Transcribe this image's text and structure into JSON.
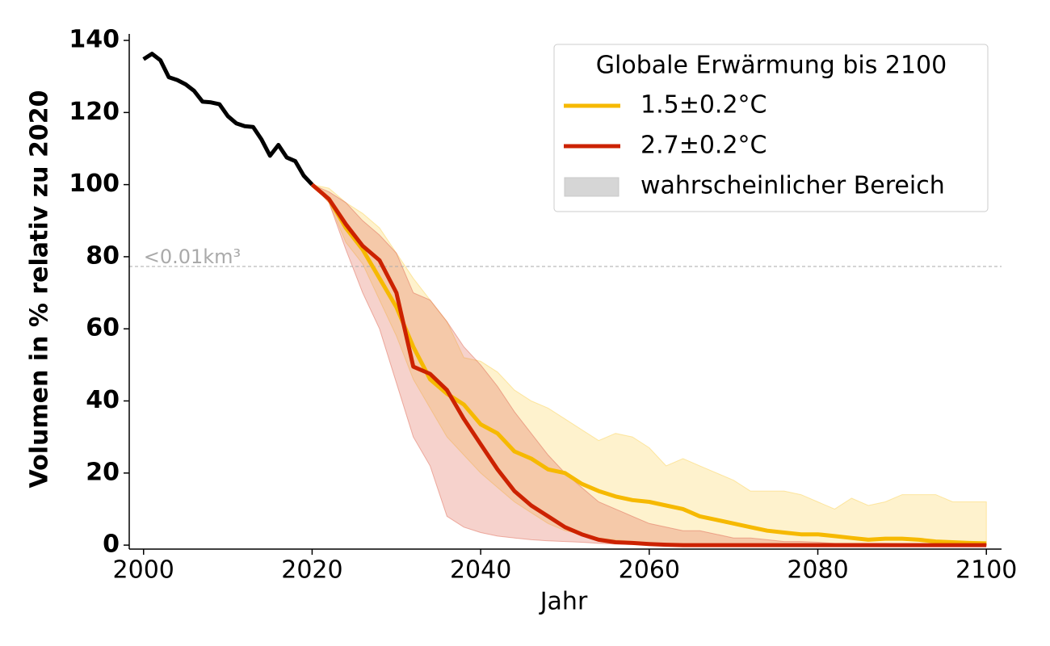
{
  "chart_data": {
    "type": "line",
    "xlabel": "Jahr",
    "ylabel": "Volumen in % relativ zu 2020",
    "xlim": [
      1998.3,
      2101.8
    ],
    "ylim": [
      -1.1,
      141.8
    ],
    "xticks": [
      2000,
      2020,
      2040,
      2060,
      2080,
      2100
    ],
    "yticks": [
      0,
      20,
      40,
      60,
      80,
      100,
      120,
      140
    ],
    "legend": {
      "title": "Globale Erwärmung bis 2100",
      "position": "upper right",
      "band_label": "wahrscheinlicher Bereich",
      "band_color": "#d6d6d6"
    },
    "reference": {
      "value": 77.3,
      "label": "<0.01km³",
      "color": "#aaaaaa"
    },
    "series": [
      {
        "color": "#000000",
        "x": [
          2000,
          2001,
          2002,
          2003,
          2004,
          2005,
          2006,
          2007,
          2008,
          2009,
          2010,
          2011,
          2012,
          2013,
          2014,
          2015,
          2016,
          2017,
          2018,
          2019,
          2020
        ],
        "values": [
          134.8,
          136.3,
          134.5,
          129.8,
          129,
          127.8,
          126,
          123,
          122.8,
          122.3,
          119,
          117,
          116.2,
          116,
          112.5,
          108,
          111,
          107.5,
          106.5,
          102.5,
          100
        ]
      },
      {
        "name": "1.5±0.2°C",
        "color": "#f6b900",
        "x": [
          2020,
          2022,
          2024,
          2026,
          2028,
          2030,
          2032,
          2034,
          2036,
          2038,
          2040,
          2042,
          2044,
          2046,
          2048,
          2050,
          2052,
          2054,
          2056,
          2058,
          2060,
          2062,
          2064,
          2066,
          2068,
          2070,
          2072,
          2074,
          2076,
          2078,
          2080,
          2082,
          2084,
          2086,
          2088,
          2090,
          2092,
          2094,
          2096,
          2098,
          2100
        ],
        "values": [
          100,
          96,
          88,
          82,
          74,
          66,
          55,
          46,
          42,
          39,
          33.5,
          31,
          26,
          24,
          21,
          20,
          17,
          15,
          13.5,
          12.5,
          12,
          11,
          10,
          8,
          7,
          6,
          5,
          4,
          3.5,
          3,
          3,
          2.5,
          2,
          1.5,
          1.8,
          1.8,
          1.5,
          1,
          0.8,
          0.6,
          0.5
        ],
        "band_color": "#fcd35a",
        "lower": [
          100,
          95,
          84,
          78,
          68,
          58,
          46,
          38,
          30,
          25,
          20,
          16,
          12,
          9,
          6,
          4,
          3,
          2,
          1.5,
          1,
          0.5,
          0.3,
          0.3,
          0.3,
          0.3,
          0.2,
          0.2,
          0.2,
          0.2,
          0.1,
          0.1,
          0.1,
          0.1,
          0.1,
          0,
          0,
          0,
          0,
          0,
          0,
          0
        ],
        "upper": [
          100,
          99,
          95,
          92,
          88,
          81,
          74,
          68,
          62,
          52,
          51,
          48,
          43,
          40,
          38,
          35,
          32,
          29,
          31,
          30,
          27,
          22,
          24,
          22,
          20,
          18,
          15,
          15,
          15,
          14,
          12,
          10,
          13,
          11,
          12,
          14,
          14,
          14,
          12,
          12,
          12
        ]
      },
      {
        "name": "2.7±0.2°C",
        "color": "#cc2200",
        "x": [
          2020,
          2022,
          2024,
          2026,
          2028,
          2030,
          2032,
          2034,
          2036,
          2038,
          2040,
          2042,
          2044,
          2046,
          2048,
          2050,
          2052,
          2054,
          2056,
          2058,
          2060,
          2062,
          2064,
          2066,
          2068,
          2070,
          2072,
          2074,
          2076,
          2078,
          2080,
          2082,
          2084,
          2086,
          2088,
          2090,
          2092,
          2094,
          2096,
          2098,
          2100
        ],
        "values": [
          100,
          96,
          89,
          83,
          79,
          70,
          49.5,
          47.5,
          43,
          35,
          28,
          21,
          15,
          11,
          8,
          5,
          3,
          1.5,
          0.8,
          0.6,
          0.3,
          0.1,
          0,
          0,
          0,
          0,
          0,
          0,
          0,
          0,
          0,
          0,
          0,
          0,
          0,
          0,
          0,
          0,
          0,
          0,
          0
        ],
        "band_color": "#e06a55",
        "lower": [
          100,
          95,
          82,
          70,
          60,
          45,
          30,
          22,
          8,
          5,
          3.5,
          2.5,
          2,
          1.5,
          1.2,
          1,
          0.8,
          0.5,
          0.3,
          0.2,
          0.1,
          0,
          0,
          0,
          0,
          0,
          0,
          0,
          0,
          0,
          0,
          0,
          0,
          0,
          0,
          0,
          0,
          0,
          0,
          0,
          0
        ],
        "upper": [
          100,
          98,
          95,
          90,
          86,
          81,
          70,
          68,
          62,
          55,
          50,
          44,
          37,
          31,
          25,
          20,
          16,
          12,
          10,
          8,
          6,
          5,
          4,
          4,
          3,
          2,
          2,
          1.5,
          1,
          1,
          0.8,
          0.5,
          0.5,
          0.5,
          0.5,
          0.4,
          0.4,
          0.3,
          0.3,
          0.3,
          0.3
        ]
      }
    ]
  }
}
